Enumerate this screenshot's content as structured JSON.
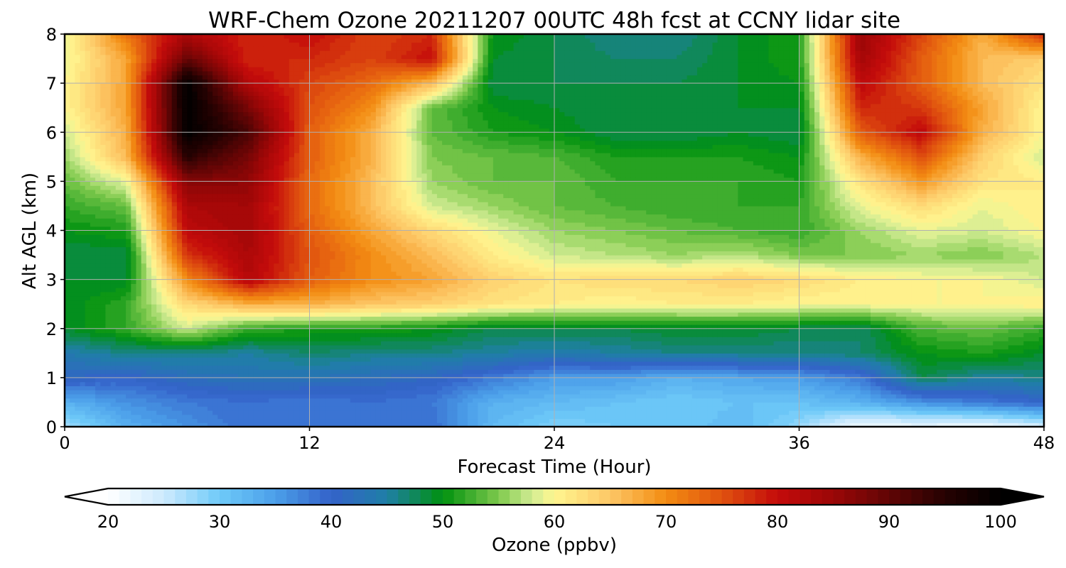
{
  "chart_data": {
    "type": "heatmap",
    "title": "WRF-Chem Ozone  20211207 00UTC 48h fcst at CCNY lidar site",
    "xlabel": "Forecast Time (Hour)",
    "ylabel": "Alt AGL (km)",
    "xlim": [
      0,
      48
    ],
    "ylim": [
      0,
      8
    ],
    "xticks": [
      0,
      12,
      24,
      36,
      48
    ],
    "yticks": [
      0,
      1,
      2,
      3,
      4,
      5,
      6,
      7,
      8
    ],
    "grid": true,
    "x_hours": [
      0,
      3,
      6,
      9,
      12,
      15,
      18,
      21,
      24,
      27,
      30,
      33,
      36,
      39,
      42,
      45,
      48
    ],
    "y_km": [
      0,
      0.5,
      1,
      1.5,
      2,
      2.5,
      3,
      3.5,
      4,
      4.5,
      5,
      5.5,
      6,
      6.5,
      7,
      7.5,
      8
    ],
    "ozone_ppbv": [
      [
        27,
        33,
        36,
        39,
        38,
        39,
        39,
        32,
        29,
        30,
        30,
        32,
        28,
        21,
        22,
        21,
        24
      ],
      [
        33,
        36,
        38,
        39,
        38,
        39,
        38,
        33,
        32,
        31,
        30,
        31,
        31,
        33,
        36,
        38,
        40
      ],
      [
        41,
        40,
        42,
        43,
        43,
        42,
        41,
        38,
        35,
        35,
        33,
        34,
        35,
        38,
        48,
        45,
        46
      ],
      [
        44,
        46,
        46,
        45,
        47,
        46,
        46,
        45,
        44,
        45,
        46,
        46,
        46,
        47,
        50,
        51,
        49
      ],
      [
        49,
        52,
        58,
        52,
        51,
        51,
        50,
        48,
        48,
        48,
        49,
        49,
        48,
        47,
        53,
        54,
        52
      ],
      [
        49,
        52,
        63,
        67,
        67,
        65,
        64,
        62,
        61,
        60,
        61,
        61,
        60,
        60,
        60,
        60,
        61
      ],
      [
        49,
        49,
        70,
        82,
        74,
        70,
        68,
        64,
        62,
        63,
        63,
        64,
        63,
        61,
        60,
        60,
        58
      ],
      [
        48,
        48,
        77,
        83,
        75,
        70,
        66,
        61,
        58,
        57,
        56,
        57,
        55,
        55,
        56,
        55,
        57
      ],
      [
        50,
        51,
        81,
        84,
        74,
        68,
        63,
        59,
        56,
        55,
        54,
        53,
        52,
        56,
        59,
        58,
        60
      ],
      [
        52,
        54,
        83,
        84,
        73,
        66,
        58,
        56,
        54,
        53,
        52,
        52,
        52,
        59,
        63,
        59,
        61
      ],
      [
        54,
        59,
        87,
        86,
        73,
        66,
        56,
        54,
        54,
        52,
        52,
        52,
        51,
        62,
        69,
        62,
        61
      ],
      [
        56,
        66,
        95,
        88,
        74,
        67,
        55,
        54,
        53,
        51,
        51,
        51,
        50,
        67,
        75,
        64,
        58
      ],
      [
        58,
        67,
        100,
        92,
        74,
        67,
        54,
        51,
        50,
        48,
        48,
        49,
        48,
        74,
        81,
        67,
        60
      ],
      [
        60,
        68,
        100,
        88,
        75,
        70,
        54,
        50,
        49,
        48,
        48,
        49,
        49,
        78,
        77,
        68,
        60
      ],
      [
        60,
        68,
        100,
        82,
        76,
        73,
        66,
        48,
        48,
        48,
        48,
        49,
        50,
        81,
        74,
        66,
        62
      ],
      [
        59,
        68,
        90,
        78,
        78,
        76,
        80,
        49,
        48,
        47,
        47,
        49,
        51,
        84,
        74,
        66,
        64
      ],
      [
        59,
        72,
        83,
        78,
        80,
        76,
        78,
        50,
        48,
        46,
        46,
        49,
        51,
        85,
        76,
        67,
        78
      ]
    ],
    "colorbar": {
      "label": "Ozone  (ppbv)",
      "min": 20,
      "max": 100,
      "step": 1,
      "ticks": [
        20,
        30,
        40,
        50,
        60,
        70,
        80,
        90,
        100
      ],
      "extend": "both",
      "stops": [
        [
          20,
          "#ffffff"
        ],
        [
          25,
          "#cdeafd"
        ],
        [
          30,
          "#6ecaf8"
        ],
        [
          35,
          "#4b9fe9"
        ],
        [
          40,
          "#3462c9"
        ],
        [
          45,
          "#1f7fa6"
        ],
        [
          50,
          "#00910f"
        ],
        [
          55,
          "#7ec94c"
        ],
        [
          58,
          "#d2ec94"
        ],
        [
          60,
          "#fff690"
        ],
        [
          65,
          "#fdc766"
        ],
        [
          70,
          "#f38c12"
        ],
        [
          75,
          "#e0520f"
        ],
        [
          80,
          "#c40b0b"
        ],
        [
          85,
          "#9b0707"
        ],
        [
          90,
          "#600505"
        ],
        [
          95,
          "#260202"
        ],
        [
          100,
          "#000000"
        ]
      ]
    }
  }
}
